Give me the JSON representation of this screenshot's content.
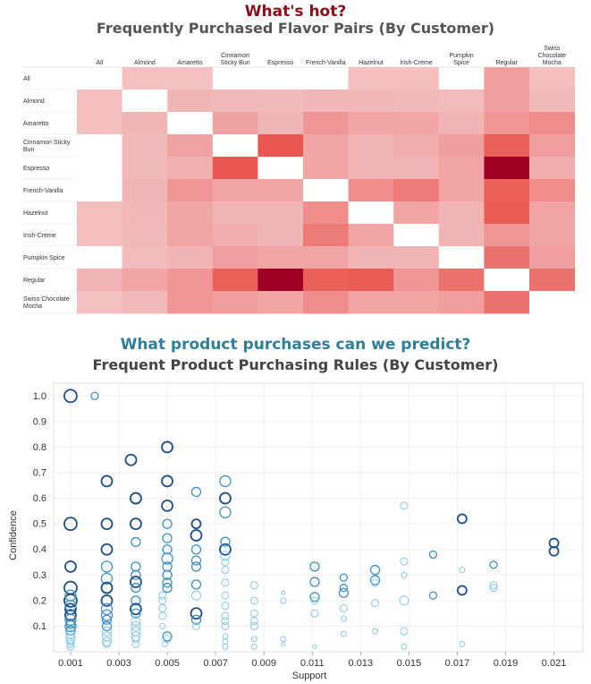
{
  "heatmap": {
    "title": "What's hot?",
    "subtitle": "Frequently Purchased Flavor Pairs (By Customer)"
  },
  "scatter": {
    "title": "What product purchases can we predict?",
    "subtitle": "Frequent Product Purchasing Rules (By Customer)"
  },
  "colors": {
    "hot_title": "#8b0f1a",
    "predict_title": "#2f7f9a",
    "heat_low": "#f4d3d3",
    "heat_high": "#9e0026",
    "dot_dark": "#1f4f86",
    "dot_light": "#5aaed3"
  },
  "chart_data": [
    {
      "type": "heatmap",
      "columns": [
        "All",
        "Almond",
        "Amaretto",
        "Cinnamon Sticky Bun",
        "Espresso",
        "French-Vanilla",
        "Hazelnut",
        "Irish-Creme",
        "Pumpkin Spice",
        "Regular",
        "Swiss Chocolate Mocha"
      ],
      "rows": [
        "All",
        "Almond",
        "Amaretto",
        "Cinnamon Sticky Bun",
        "Espresso",
        "French-Vanilla",
        "Hazelnut",
        "Irish-Creme",
        "Pumpkin Spice",
        "Regular",
        "Swiss Chocolate Mocha"
      ],
      "values": [
        [
          0,
          0.12,
          0.12,
          0,
          0,
          0,
          0.14,
          0.14,
          0,
          0.35,
          0.14
        ],
        [
          0.13,
          0,
          0.2,
          0.17,
          0.16,
          0.18,
          0.18,
          0.17,
          0.15,
          0.35,
          0.17
        ],
        [
          0.13,
          0.2,
          0,
          0.32,
          0.2,
          0.4,
          0.3,
          0.3,
          0.2,
          0.4,
          0.45
        ],
        [
          0,
          0.17,
          0.32,
          0,
          0.75,
          0.3,
          0.2,
          0.25,
          0.35,
          0.7,
          0.35
        ],
        [
          0,
          0.16,
          0.22,
          0.75,
          0,
          0.3,
          0.2,
          0.2,
          0.3,
          1.0,
          0.25
        ],
        [
          0,
          0.2,
          0.4,
          0.3,
          0.3,
          0,
          0.45,
          0.55,
          0.3,
          0.7,
          0.45
        ],
        [
          0.14,
          0.18,
          0.3,
          0.2,
          0.2,
          0.45,
          0,
          0.3,
          0.2,
          0.72,
          0.3
        ],
        [
          0.14,
          0.17,
          0.3,
          0.25,
          0.2,
          0.55,
          0.3,
          0,
          0.2,
          0.4,
          0.3
        ],
        [
          0,
          0.15,
          0.2,
          0.35,
          0.3,
          0.3,
          0.2,
          0.2,
          0,
          0.6,
          0.35
        ],
        [
          0.2,
          0.3,
          0.4,
          0.7,
          1.0,
          0.7,
          0.72,
          0.4,
          0.6,
          0,
          0.6
        ],
        [
          0.12,
          0.17,
          0.4,
          0.35,
          0.3,
          0.45,
          0.3,
          0.3,
          0.35,
          0.6,
          0
        ]
      ],
      "title": "Frequently Purchased Flavor Pairs (By Customer)"
    },
    {
      "type": "scatter",
      "title": "Frequent Product Purchasing Rules (By Customer)",
      "xlabel": "Support",
      "ylabel": "Confidence",
      "xlim": [
        0.0003,
        0.0222
      ],
      "ylim": [
        0.0,
        1.05
      ],
      "xticks": [
        "0.001",
        "0.003",
        "0.005",
        "0.007",
        "0.009",
        "0.011",
        "0.013",
        "0.015",
        "0.017",
        "0.019",
        "0.021"
      ],
      "yticks": [
        "0.1",
        "0.2",
        "0.3",
        "0.4",
        "0.5",
        "0.6",
        "0.7",
        "0.8",
        "0.9",
        "1.0"
      ],
      "points": [
        [
          0.001,
          1.0,
          7,
          2
        ],
        [
          0.001,
          0.5,
          7,
          2
        ],
        [
          0.001,
          0.333,
          6,
          2
        ],
        [
          0.001,
          0.25,
          7,
          2
        ],
        [
          0.001,
          0.2,
          7,
          2
        ],
        [
          0.001,
          0.167,
          6,
          2
        ],
        [
          0.001,
          0.143,
          6,
          2
        ],
        [
          0.001,
          0.125,
          6,
          1
        ],
        [
          0.001,
          0.1,
          6,
          1
        ],
        [
          0.001,
          0.083,
          5,
          1
        ],
        [
          0.001,
          0.067,
          5,
          0
        ],
        [
          0.001,
          0.05,
          5,
          0
        ],
        [
          0.001,
          0.04,
          4,
          0
        ],
        [
          0.001,
          0.03,
          4,
          0
        ],
        [
          0.001,
          0.02,
          4,
          0
        ],
        [
          0.001,
          0.18,
          6,
          1
        ],
        [
          0.001,
          0.22,
          6,
          1
        ],
        [
          0.001,
          0.11,
          5,
          1
        ],
        [
          0.002,
          1.0,
          4,
          1
        ],
        [
          0.0025,
          0.667,
          6,
          2
        ],
        [
          0.0025,
          0.5,
          6,
          2
        ],
        [
          0.0025,
          0.4,
          6,
          2
        ],
        [
          0.0025,
          0.333,
          6,
          1
        ],
        [
          0.0025,
          0.286,
          6,
          1
        ],
        [
          0.0025,
          0.25,
          6,
          2
        ],
        [
          0.0025,
          0.2,
          6,
          2
        ],
        [
          0.0025,
          0.167,
          6,
          1
        ],
        [
          0.0025,
          0.143,
          6,
          1
        ],
        [
          0.0025,
          0.125,
          5,
          1
        ],
        [
          0.0025,
          0.1,
          5,
          1
        ],
        [
          0.0025,
          0.08,
          5,
          0
        ],
        [
          0.0025,
          0.06,
          5,
          0
        ],
        [
          0.0025,
          0.04,
          5,
          0
        ],
        [
          0.0025,
          0.03,
          4,
          0
        ],
        [
          0.0035,
          0.75,
          6,
          2
        ],
        [
          0.0037,
          0.6,
          6,
          2
        ],
        [
          0.0037,
          0.5,
          6,
          2
        ],
        [
          0.0037,
          0.429,
          5,
          1
        ],
        [
          0.0037,
          0.333,
          5,
          1
        ],
        [
          0.0037,
          0.3,
          5,
          1
        ],
        [
          0.0037,
          0.273,
          6,
          2
        ],
        [
          0.0037,
          0.25,
          5,
          1
        ],
        [
          0.0037,
          0.2,
          5,
          1
        ],
        [
          0.0037,
          0.167,
          6,
          2
        ],
        [
          0.0037,
          0.15,
          5,
          1
        ],
        [
          0.0037,
          0.12,
          5,
          0
        ],
        [
          0.0037,
          0.1,
          5,
          0
        ],
        [
          0.0037,
          0.08,
          5,
          0
        ],
        [
          0.0037,
          0.06,
          5,
          0
        ],
        [
          0.0037,
          0.05,
          4,
          0
        ],
        [
          0.0037,
          0.03,
          4,
          0
        ],
        [
          0.005,
          0.8,
          6,
          2
        ],
        [
          0.005,
          0.667,
          6,
          2
        ],
        [
          0.005,
          0.571,
          6,
          2
        ],
        [
          0.005,
          0.5,
          5,
          1
        ],
        [
          0.005,
          0.444,
          5,
          1
        ],
        [
          0.005,
          0.4,
          5,
          1
        ],
        [
          0.005,
          0.364,
          6,
          1
        ],
        [
          0.005,
          0.333,
          5,
          1
        ],
        [
          0.005,
          0.3,
          5,
          1
        ],
        [
          0.005,
          0.27,
          5,
          1
        ],
        [
          0.005,
          0.25,
          5,
          1
        ],
        [
          0.0048,
          0.22,
          4,
          0
        ],
        [
          0.0048,
          0.2,
          4,
          0
        ],
        [
          0.0048,
          0.17,
          4,
          0
        ],
        [
          0.0048,
          0.14,
          4,
          0
        ],
        [
          0.0048,
          0.1,
          3,
          0
        ],
        [
          0.005,
          0.06,
          5,
          1
        ],
        [
          0.005,
          0.05,
          4,
          0
        ],
        [
          0.0049,
          0.03,
          3,
          0
        ],
        [
          0.0062,
          0.625,
          5,
          1
        ],
        [
          0.0062,
          0.5,
          5,
          2
        ],
        [
          0.0062,
          0.455,
          6,
          2
        ],
        [
          0.0062,
          0.4,
          5,
          1
        ],
        [
          0.0062,
          0.357,
          5,
          1
        ],
        [
          0.0062,
          0.333,
          5,
          1
        ],
        [
          0.0062,
          0.263,
          5,
          1
        ],
        [
          0.0062,
          0.22,
          5,
          0
        ],
        [
          0.0062,
          0.15,
          6,
          2
        ],
        [
          0.0062,
          0.125,
          5,
          1
        ],
        [
          0.0062,
          0.1,
          4,
          0
        ],
        [
          0.0074,
          0.667,
          6,
          1
        ],
        [
          0.0074,
          0.6,
          6,
          2
        ],
        [
          0.0074,
          0.545,
          6,
          1
        ],
        [
          0.0074,
          0.4,
          6,
          2
        ],
        [
          0.0074,
          0.43,
          5,
          1
        ],
        [
          0.0074,
          0.375,
          5,
          0
        ],
        [
          0.0074,
          0.35,
          4,
          0
        ],
        [
          0.0074,
          0.32,
          4,
          0
        ],
        [
          0.0074,
          0.27,
          4,
          0
        ],
        [
          0.0074,
          0.22,
          4,
          0
        ],
        [
          0.0074,
          0.18,
          4,
          0
        ],
        [
          0.0074,
          0.14,
          4,
          0
        ],
        [
          0.0074,
          0.12,
          4,
          0
        ],
        [
          0.0074,
          0.1,
          4,
          0
        ],
        [
          0.0074,
          0.06,
          3,
          0
        ],
        [
          0.0074,
          0.04,
          3,
          0
        ],
        [
          0.0074,
          0.02,
          3,
          0
        ],
        [
          0.0086,
          0.26,
          4,
          0
        ],
        [
          0.0086,
          0.2,
          4,
          0
        ],
        [
          0.0086,
          0.15,
          4,
          0
        ],
        [
          0.0086,
          0.12,
          4,
          0
        ],
        [
          0.0086,
          0.1,
          4,
          0
        ],
        [
          0.0086,
          0.05,
          3,
          0
        ],
        [
          0.0086,
          0.02,
          3,
          0
        ],
        [
          0.0098,
          0.23,
          2,
          0
        ],
        [
          0.0098,
          0.2,
          3,
          0
        ],
        [
          0.0098,
          0.05,
          3,
          0
        ],
        [
          0.0098,
          0.03,
          2,
          0
        ],
        [
          0.0111,
          0.333,
          5,
          1
        ],
        [
          0.0111,
          0.273,
          5,
          1
        ],
        [
          0.0111,
          0.214,
          5,
          1
        ],
        [
          0.0111,
          0.2,
          4,
          0
        ],
        [
          0.0111,
          0.15,
          4,
          0
        ],
        [
          0.0111,
          0.02,
          2,
          0
        ],
        [
          0.0123,
          0.29,
          4,
          1
        ],
        [
          0.0123,
          0.25,
          4,
          1
        ],
        [
          0.0123,
          0.23,
          5,
          1
        ],
        [
          0.0123,
          0.17,
          4,
          0
        ],
        [
          0.0123,
          0.13,
          3,
          0
        ],
        [
          0.0123,
          0.07,
          3,
          0
        ],
        [
          0.0136,
          0.32,
          5,
          1
        ],
        [
          0.0136,
          0.28,
          5,
          1
        ],
        [
          0.0136,
          0.27,
          4,
          0
        ],
        [
          0.0136,
          0.19,
          4,
          0
        ],
        [
          0.0136,
          0.08,
          3,
          0
        ],
        [
          0.0148,
          0.571,
          4,
          0
        ],
        [
          0.0148,
          0.353,
          4,
          0
        ],
        [
          0.0148,
          0.3,
          3,
          0
        ],
        [
          0.0148,
          0.2,
          5,
          0
        ],
        [
          0.0148,
          0.08,
          4,
          0
        ],
        [
          0.0148,
          0.02,
          3,
          0
        ],
        [
          0.016,
          0.38,
          4,
          1
        ],
        [
          0.016,
          0.22,
          4,
          1
        ],
        [
          0.0172,
          0.52,
          5,
          2
        ],
        [
          0.0172,
          0.32,
          3,
          0
        ],
        [
          0.0172,
          0.24,
          5,
          2
        ],
        [
          0.0172,
          0.03,
          3,
          0
        ],
        [
          0.0185,
          0.34,
          4,
          1
        ],
        [
          0.0185,
          0.26,
          4,
          0
        ],
        [
          0.0185,
          0.25,
          4,
          0
        ],
        [
          0.021,
          0.425,
          5,
          2
        ],
        [
          0.021,
          0.393,
          5,
          2
        ]
      ]
    }
  ]
}
